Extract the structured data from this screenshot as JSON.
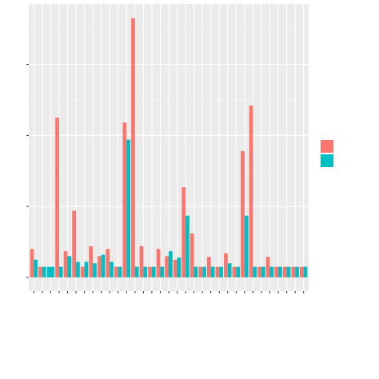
{
  "colors": {
    "panel_bg": "#EBEBEB",
    "grid_major": "#FFFFFF",
    "grid_minor": "#F5F5F5",
    "axis_ticks": "#333333",
    "series_a": "#F8766D",
    "series_b": "#00BFC4"
  },
  "chart_data": {
    "type": "bar",
    "position": "dodge",
    "title": "",
    "xlabel": "",
    "ylabel": "",
    "ylim": [
      0,
      3.85
    ],
    "y_major_ticks": [
      0,
      1,
      2,
      3
    ],
    "x_tick_labels_visible": false,
    "grid": true,
    "legend": "right",
    "categories": [
      1,
      2,
      3,
      4,
      5,
      6,
      7,
      8,
      9,
      10,
      11,
      12,
      13,
      14,
      15,
      16,
      17,
      18,
      19,
      20,
      21,
      22,
      23,
      24,
      25,
      26,
      27,
      28,
      29,
      30,
      31,
      32,
      33
    ],
    "series": [
      {
        "color_key": "series_a",
        "values": [
          0.4,
          0.15,
          null,
          2.25,
          0.37,
          0.94,
          0.15,
          0.44,
          0.3,
          0.4,
          0.15,
          2.18,
          3.65,
          0.44,
          0.15,
          0.4,
          0.3,
          0.25,
          1.27,
          0.62,
          0.15,
          0.29,
          0.15,
          0.34,
          0.15,
          1.78,
          2.42,
          0.15,
          0.29,
          0.15,
          0.15,
          0.15,
          0.15
        ]
      },
      {
        "color_key": "series_b",
        "values": [
          0.25,
          0.15,
          0.15,
          0.15,
          0.3,
          0.22,
          0.22,
          0.2,
          0.32,
          0.22,
          0.15,
          1.94,
          0.15,
          0.15,
          0.15,
          0.15,
          0.37,
          0.28,
          0.87,
          0.15,
          0.15,
          0.15,
          0.15,
          0.2,
          0.15,
          0.87,
          0.15,
          0.15,
          0.15,
          0.15,
          0.15,
          0.15,
          0.15
        ]
      }
    ]
  }
}
